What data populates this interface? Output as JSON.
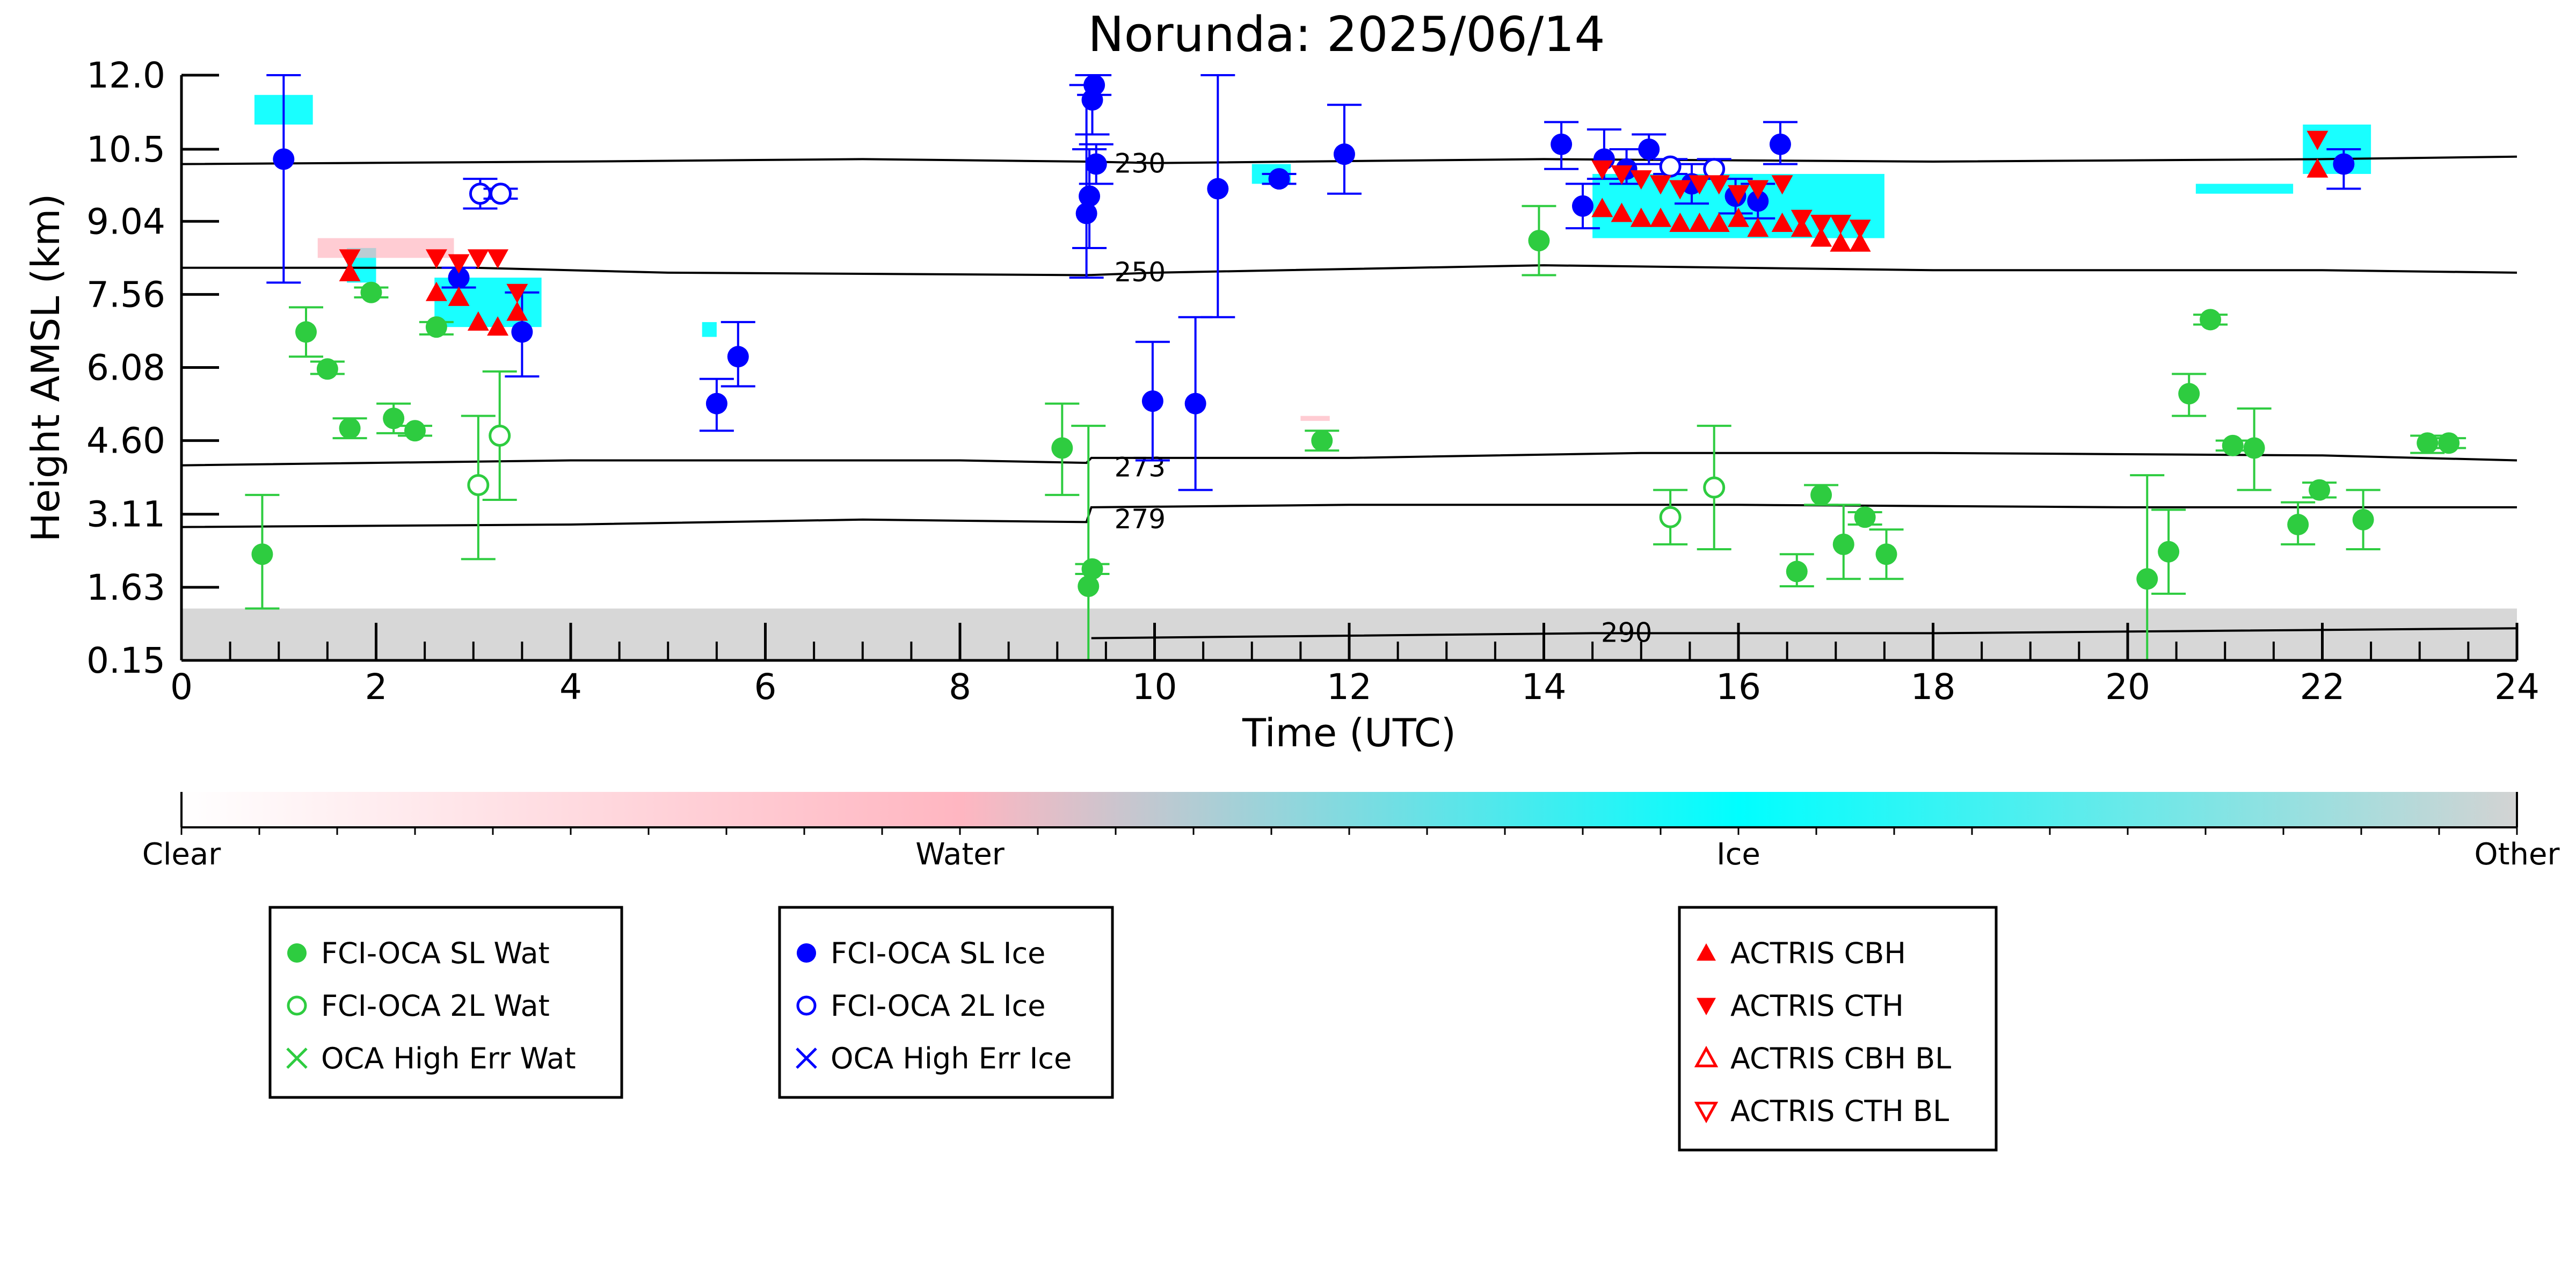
{
  "chart_data": {
    "type": "scatter",
    "title": "Norunda: 2025/06/14",
    "xlabel": "Time (UTC)",
    "ylabel": "Height AMSL (km)",
    "xlim": [
      0,
      24
    ],
    "ylim": [
      0.15,
      12.0
    ],
    "x_ticks": [
      "0",
      "2",
      "4",
      "6",
      "8",
      "10",
      "12",
      "14",
      "16",
      "18",
      "20",
      "22",
      "24"
    ],
    "y_ticks": [
      "0.15",
      "1.63",
      "3.11",
      "4.60",
      "6.08",
      "7.56",
      "9.04",
      "10.5",
      "12.0"
    ],
    "colorbar": {
      "labels": [
        "Clear",
        "Water",
        "Ice",
        "Other"
      ],
      "colors": [
        "#ffffff",
        "#ffb6c1",
        "#00ffff",
        "#d3d3d3"
      ]
    },
    "isotherms": [
      {
        "label": "230",
        "label_x": 9.85,
        "label_y": 10.2,
        "points": [
          [
            0,
            10.2
          ],
          [
            4,
            10.25
          ],
          [
            7,
            10.3
          ],
          [
            9.3,
            10.25
          ],
          [
            10,
            10.22
          ],
          [
            14,
            10.3
          ],
          [
            18,
            10.25
          ],
          [
            22,
            10.3
          ],
          [
            24,
            10.35
          ]
        ]
      },
      {
        "label": "250",
        "label_x": 9.85,
        "label_y": 8.0,
        "points": [
          [
            0,
            8.1
          ],
          [
            3,
            8.1
          ],
          [
            5,
            8.0
          ],
          [
            9.3,
            7.95
          ],
          [
            10,
            8.0
          ],
          [
            14,
            8.15
          ],
          [
            18,
            8.05
          ],
          [
            22,
            8.05
          ],
          [
            24,
            8.0
          ]
        ]
      },
      {
        "label": "273",
        "label_x": 9.85,
        "label_y": 4.05,
        "points": [
          [
            0,
            4.1
          ],
          [
            4,
            4.2
          ],
          [
            8,
            4.2
          ],
          [
            9.3,
            4.15
          ],
          [
            9.35,
            4.25
          ],
          [
            12,
            4.25
          ],
          [
            15,
            4.35
          ],
          [
            18,
            4.35
          ],
          [
            22,
            4.3
          ],
          [
            24,
            4.2
          ]
        ]
      },
      {
        "label": "279",
        "label_x": 9.85,
        "label_y": 3.0,
        "points": [
          [
            0,
            2.85
          ],
          [
            4,
            2.9
          ],
          [
            7,
            3.0
          ],
          [
            9.3,
            2.95
          ],
          [
            9.35,
            3.25
          ],
          [
            12,
            3.3
          ],
          [
            16,
            3.3
          ],
          [
            20,
            3.25
          ],
          [
            24,
            3.25
          ]
        ]
      },
      {
        "label": "290",
        "label_x": 14.85,
        "label_y": 0.7,
        "points": [
          [
            9.35,
            0.6
          ],
          [
            12,
            0.65
          ],
          [
            14.5,
            0.7
          ],
          [
            18,
            0.7
          ],
          [
            21,
            0.75
          ],
          [
            24,
            0.8
          ]
        ]
      }
    ],
    "series": [
      {
        "name": "FCI-OCA SL Wat",
        "color": "#2ecc40",
        "marker": "filled-circle",
        "points": [
          {
            "x": 0.83,
            "y": 2.3,
            "lo": 1.2,
            "hi": 3.5
          },
          {
            "x": 1.28,
            "y": 6.8,
            "lo": 6.3,
            "hi": 7.3
          },
          {
            "x": 1.5,
            "y": 6.05,
            "lo": 5.95,
            "hi": 6.2
          },
          {
            "x": 1.73,
            "y": 4.85,
            "lo": 4.65,
            "hi": 5.05
          },
          {
            "x": 1.95,
            "y": 7.6,
            "lo": 7.5,
            "hi": 7.7
          },
          {
            "x": 2.18,
            "y": 5.05,
            "lo": 4.75,
            "hi": 5.35
          },
          {
            "x": 2.4,
            "y": 4.8,
            "lo": 4.7,
            "hi": 4.9
          },
          {
            "x": 2.62,
            "y": 6.9,
            "lo": 6.75,
            "hi": 7.0
          },
          {
            "x": 9.05,
            "y": 4.45,
            "lo": 3.5,
            "hi": 5.35
          },
          {
            "x": 9.32,
            "y": 1.65,
            "lo": 0.15,
            "hi": 4.9
          },
          {
            "x": 9.36,
            "y": 2.0,
            "lo": 1.9,
            "hi": 2.1
          },
          {
            "x": 11.72,
            "y": 4.6,
            "lo": 4.4,
            "hi": 4.8
          },
          {
            "x": 13.95,
            "y": 8.65,
            "lo": 7.95,
            "hi": 9.35
          },
          {
            "x": 16.6,
            "y": 1.95,
            "lo": 1.65,
            "hi": 2.3
          },
          {
            "x": 16.85,
            "y": 3.5,
            "lo": 3.3,
            "hi": 3.7
          },
          {
            "x": 17.08,
            "y": 2.5,
            "lo": 1.8,
            "hi": 3.3
          },
          {
            "x": 17.3,
            "y": 3.05,
            "lo": 2.9,
            "hi": 3.15
          },
          {
            "x": 17.52,
            "y": 2.3,
            "lo": 1.8,
            "hi": 2.8
          },
          {
            "x": 20.2,
            "y": 1.8,
            "lo": 0.15,
            "hi": 3.9
          },
          {
            "x": 20.42,
            "y": 2.35,
            "lo": 1.5,
            "hi": 3.2
          },
          {
            "x": 20.63,
            "y": 5.55,
            "lo": 5.1,
            "hi": 5.95
          },
          {
            "x": 20.85,
            "y": 7.05,
            "lo": 6.95,
            "hi": 7.15
          },
          {
            "x": 21.08,
            "y": 4.5,
            "lo": 4.4,
            "hi": 4.6
          },
          {
            "x": 21.3,
            "y": 4.45,
            "lo": 3.6,
            "hi": 5.25
          },
          {
            "x": 21.75,
            "y": 2.9,
            "lo": 2.5,
            "hi": 3.35
          },
          {
            "x": 21.97,
            "y": 3.6,
            "lo": 3.45,
            "hi": 3.75
          },
          {
            "x": 22.42,
            "y": 3.0,
            "lo": 2.4,
            "hi": 3.6
          },
          {
            "x": 23.08,
            "y": 4.55,
            "lo": 4.35,
            "hi": 4.7
          },
          {
            "x": 23.3,
            "y": 4.55,
            "lo": 4.45,
            "hi": 4.65
          }
        ]
      },
      {
        "name": "FCI-OCA 2L Wat",
        "color": "#2ecc40",
        "marker": "open-circle",
        "points": [
          {
            "x": 3.05,
            "y": 3.7,
            "lo": 2.2,
            "hi": 5.1
          },
          {
            "x": 3.27,
            "y": 4.7,
            "lo": 3.4,
            "hi": 6.0
          },
          {
            "x": 15.3,
            "y": 3.05,
            "lo": 2.5,
            "hi": 3.6
          },
          {
            "x": 15.75,
            "y": 3.65,
            "lo": 2.4,
            "hi": 4.9
          }
        ]
      },
      {
        "name": "OCA High Err Wat",
        "color": "#2ecc40",
        "marker": "x",
        "points": []
      },
      {
        "name": "FCI-OCA SL Ice",
        "color": "#0000ff",
        "marker": "filled-circle",
        "points": [
          {
            "x": 1.05,
            "y": 10.3,
            "lo": 7.8,
            "hi": 12.0
          },
          {
            "x": 2.85,
            "y": 7.9,
            "lo": 7.7,
            "hi": 8.1
          },
          {
            "x": 3.5,
            "y": 6.8,
            "lo": 5.9,
            "hi": 7.6
          },
          {
            "x": 5.5,
            "y": 5.35,
            "lo": 4.8,
            "hi": 5.85
          },
          {
            "x": 5.72,
            "y": 6.3,
            "lo": 5.7,
            "hi": 7.0
          },
          {
            "x": 9.3,
            "y": 9.2,
            "lo": 7.9,
            "hi": 11.8
          },
          {
            "x": 9.33,
            "y": 9.55,
            "lo": 8.5,
            "hi": 10.5
          },
          {
            "x": 9.36,
            "y": 11.5,
            "lo": 10.8,
            "hi": 12.0
          },
          {
            "x": 9.38,
            "y": 11.8,
            "lo": 11.6,
            "hi": 12.0
          },
          {
            "x": 9.4,
            "y": 10.2,
            "lo": 9.8,
            "hi": 10.6
          },
          {
            "x": 9.98,
            "y": 5.4,
            "lo": 4.2,
            "hi": 6.6
          },
          {
            "x": 10.42,
            "y": 5.35,
            "lo": 3.6,
            "hi": 7.1
          },
          {
            "x": 10.65,
            "y": 9.7,
            "lo": 7.1,
            "hi": 12.0
          },
          {
            "x": 11.28,
            "y": 9.9,
            "lo": 9.8,
            "hi": 10.0
          },
          {
            "x": 11.95,
            "y": 10.4,
            "lo": 9.6,
            "hi": 11.4
          },
          {
            "x": 14.18,
            "y": 10.6,
            "lo": 10.1,
            "hi": 11.05
          },
          {
            "x": 14.4,
            "y": 9.35,
            "lo": 8.9,
            "hi": 9.8
          },
          {
            "x": 14.62,
            "y": 10.3,
            "lo": 9.9,
            "hi": 10.9
          },
          {
            "x": 14.85,
            "y": 10.1,
            "lo": 9.8,
            "hi": 10.5
          },
          {
            "x": 15.08,
            "y": 10.5,
            "lo": 10.2,
            "hi": 10.8
          },
          {
            "x": 15.52,
            "y": 9.8,
            "lo": 9.4,
            "hi": 10.2
          },
          {
            "x": 15.97,
            "y": 9.55,
            "lo": 9.2,
            "hi": 9.9
          },
          {
            "x": 16.2,
            "y": 9.45,
            "lo": 9.1,
            "hi": 9.8
          },
          {
            "x": 16.43,
            "y": 10.6,
            "lo": 10.2,
            "hi": 11.05
          },
          {
            "x": 22.22,
            "y": 10.2,
            "lo": 9.7,
            "hi": 10.5
          }
        ]
      },
      {
        "name": "FCI-OCA 2L Ice",
        "color": "#0000ff",
        "marker": "open-circle",
        "points": [
          {
            "x": 3.07,
            "y": 9.6,
            "lo": 9.3,
            "hi": 9.9
          },
          {
            "x": 3.28,
            "y": 9.6,
            "lo": 9.5,
            "hi": 9.7
          },
          {
            "x": 15.3,
            "y": 10.15,
            "lo": 10.0,
            "hi": 10.3
          },
          {
            "x": 15.75,
            "y": 10.1,
            "lo": 9.9,
            "hi": 10.3
          }
        ]
      },
      {
        "name": "OCA High Err Ice",
        "color": "#0000ff",
        "marker": "x",
        "points": []
      },
      {
        "name": "ACTRIS CBH",
        "color": "#ff0000",
        "marker": "triangle-up",
        "points": [
          {
            "x": 1.73,
            "y": 8.0
          },
          {
            "x": 2.62,
            "y": 7.6
          },
          {
            "x": 2.85,
            "y": 7.5
          },
          {
            "x": 3.05,
            "y": 7.0
          },
          {
            "x": 3.25,
            "y": 6.9
          },
          {
            "x": 3.45,
            "y": 7.2
          },
          {
            "x": 14.6,
            "y": 9.3
          },
          {
            "x": 14.8,
            "y": 9.2
          },
          {
            "x": 15.0,
            "y": 9.1
          },
          {
            "x": 15.2,
            "y": 9.1
          },
          {
            "x": 15.4,
            "y": 9.0
          },
          {
            "x": 15.6,
            "y": 9.0
          },
          {
            "x": 15.8,
            "y": 9.0
          },
          {
            "x": 16.0,
            "y": 9.1
          },
          {
            "x": 16.2,
            "y": 8.9
          },
          {
            "x": 16.45,
            "y": 9.0
          },
          {
            "x": 16.65,
            "y": 8.9
          },
          {
            "x": 16.85,
            "y": 8.7
          },
          {
            "x": 17.05,
            "y": 8.6
          },
          {
            "x": 17.25,
            "y": 8.6
          },
          {
            "x": 21.95,
            "y": 10.1
          }
        ]
      },
      {
        "name": "ACTRIS CTH",
        "color": "#ff0000",
        "marker": "triangle-down",
        "points": [
          {
            "x": 1.73,
            "y": 8.3
          },
          {
            "x": 2.62,
            "y": 8.3
          },
          {
            "x": 2.85,
            "y": 8.2
          },
          {
            "x": 3.05,
            "y": 8.3
          },
          {
            "x": 3.25,
            "y": 8.3
          },
          {
            "x": 3.45,
            "y": 7.6
          },
          {
            "x": 14.6,
            "y": 10.1
          },
          {
            "x": 14.8,
            "y": 10.0
          },
          {
            "x": 15.0,
            "y": 9.9
          },
          {
            "x": 15.2,
            "y": 9.8
          },
          {
            "x": 15.4,
            "y": 9.7
          },
          {
            "x": 15.6,
            "y": 9.8
          },
          {
            "x": 15.8,
            "y": 9.8
          },
          {
            "x": 16.0,
            "y": 9.6
          },
          {
            "x": 16.2,
            "y": 9.7
          },
          {
            "x": 16.45,
            "y": 9.8
          },
          {
            "x": 16.65,
            "y": 9.1
          },
          {
            "x": 16.85,
            "y": 9.0
          },
          {
            "x": 17.05,
            "y": 9.0
          },
          {
            "x": 17.25,
            "y": 8.9
          },
          {
            "x": 21.95,
            "y": 10.7
          }
        ]
      },
      {
        "name": "ACTRIS CBH BL",
        "color": "#ff0000",
        "marker": "open-triangle-up",
        "points": []
      },
      {
        "name": "ACTRIS CTH BL",
        "color": "#ff0000",
        "marker": "open-triangle-down",
        "points": []
      }
    ],
    "classification_regions": [
      {
        "class": "Ice",
        "color": "#00ffff",
        "x0": 0.75,
        "x1": 1.35,
        "y0": 11.0,
        "y1": 11.6
      },
      {
        "class": "Ice",
        "color": "#00ffff",
        "x0": 1.7,
        "x1": 2.0,
        "y0": 7.8,
        "y1": 8.5
      },
      {
        "class": "Ice",
        "color": "#00ffff",
        "x0": 2.6,
        "x1": 3.7,
        "y0": 6.9,
        "y1": 7.9
      },
      {
        "class": "Ice",
        "color": "#00ffff",
        "x0": 5.35,
        "x1": 5.5,
        "y0": 6.7,
        "y1": 7.0
      },
      {
        "class": "Ice",
        "color": "#00ffff",
        "x0": 11.0,
        "x1": 11.4,
        "y0": 9.8,
        "y1": 10.2
      },
      {
        "class": "Ice",
        "color": "#00ffff",
        "x0": 14.5,
        "x1": 17.5,
        "y0": 8.7,
        "y1": 10.0
      },
      {
        "class": "Ice",
        "color": "#00ffff",
        "x0": 20.7,
        "x1": 21.7,
        "y0": 9.6,
        "y1": 9.8
      },
      {
        "class": "Ice",
        "color": "#00ffff",
        "x0": 21.8,
        "x1": 22.5,
        "y0": 10.0,
        "y1": 11.0
      },
      {
        "class": "Water",
        "color": "#ffb6c1",
        "x0": 1.4,
        "x1": 2.8,
        "y0": 8.3,
        "y1": 8.7
      },
      {
        "class": "Water",
        "color": "#ffb6c1",
        "x0": 11.5,
        "x1": 11.8,
        "y0": 5.0,
        "y1": 5.1
      },
      {
        "class": "Other",
        "color": "#d3d3d3",
        "x0": 0.0,
        "x1": 24.0,
        "y0": 0.15,
        "y1": 1.2
      }
    ],
    "legend": {
      "groups": [
        [
          "FCI-OCA SL Wat",
          "FCI-OCA 2L Wat",
          "OCA High Err Wat"
        ],
        [
          "FCI-OCA SL Ice",
          "FCI-OCA 2L Ice",
          "OCA High Err Ice"
        ],
        [
          "ACTRIS CBH",
          "ACTRIS CTH",
          "ACTRIS CBH BL",
          "ACTRIS CTH BL"
        ]
      ],
      "placement": "below"
    }
  }
}
